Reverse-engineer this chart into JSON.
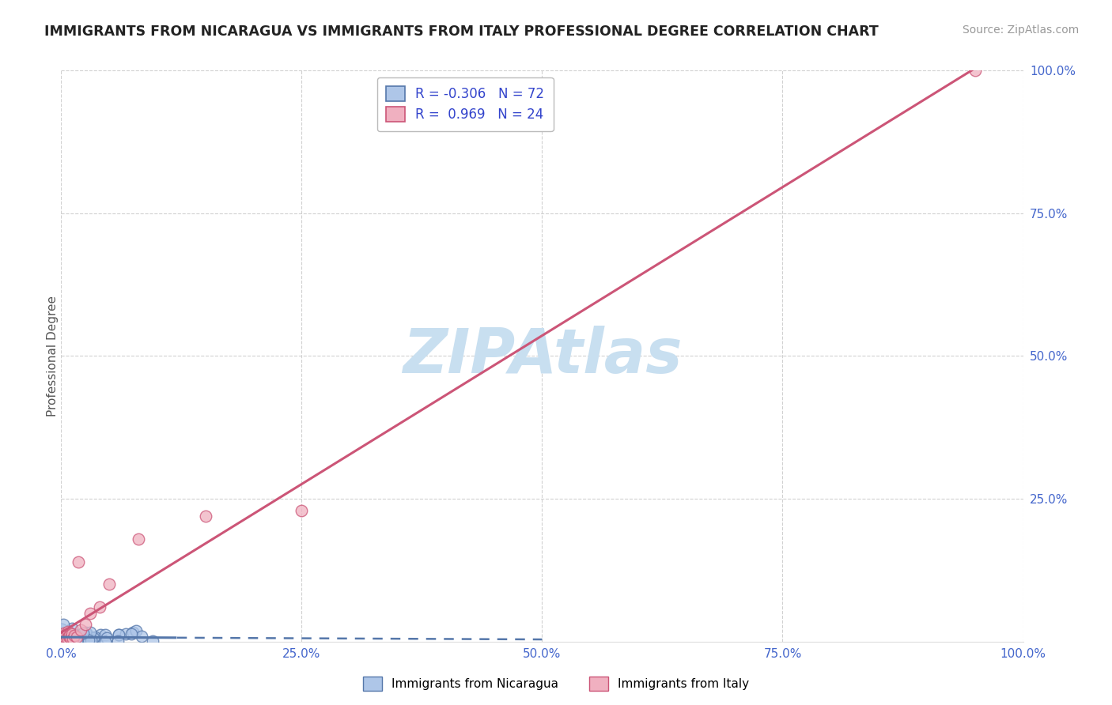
{
  "title": "IMMIGRANTS FROM NICARAGUA VS IMMIGRANTS FROM ITALY PROFESSIONAL DEGREE CORRELATION CHART",
  "source": "Source: ZipAtlas.com",
  "ylabel": "Professional Degree",
  "xlim": [
    0.0,
    1.0
  ],
  "ylim": [
    0.0,
    1.0
  ],
  "xtick_positions": [
    0.0,
    0.25,
    0.5,
    0.75,
    1.0
  ],
  "ytick_positions": [
    0.25,
    0.5,
    0.75,
    1.0
  ],
  "grid_color": "#cccccc",
  "background_color": "#ffffff",
  "watermark_color": "#c8dff0",
  "nicaragua_color": "#aec6e8",
  "nicaragua_edge_color": "#5577aa",
  "italy_color": "#f0b0c0",
  "italy_edge_color": "#cc5577",
  "nicaragua_R": -0.306,
  "nicaragua_N": 72,
  "italy_R": 0.969,
  "italy_N": 24,
  "legend_label_nicaragua": "Immigrants from Nicaragua",
  "legend_label_italy": "Immigrants from Italy"
}
